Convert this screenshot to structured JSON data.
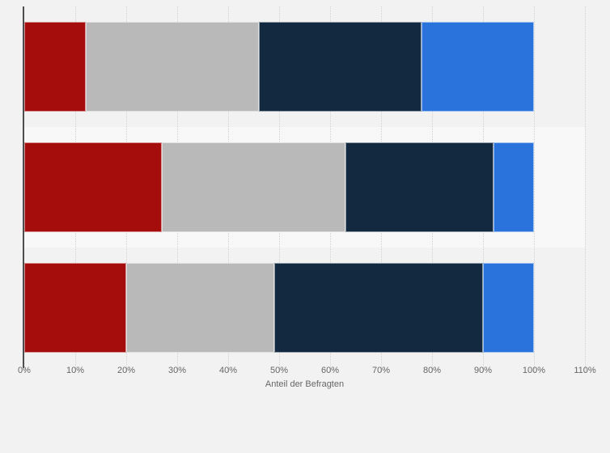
{
  "page": {
    "background": "#f2f2f2",
    "band_alt_color": "#f8f8f8",
    "gridline_color": "#d2d2d2",
    "axis_line_color": "#4e4e4e",
    "tick_text_color": "#666666"
  },
  "axis": {
    "title": "Anteil der Befragten"
  },
  "chart_data": {
    "type": "bar",
    "orientation": "horizontal",
    "stacked": true,
    "title": "",
    "xlabel": "Anteil der Befragten",
    "ylabel": "",
    "xlim": [
      0,
      110
    ],
    "x_ticks": [
      "0%",
      "10%",
      "20%",
      "30%",
      "40%",
      "50%",
      "60%",
      "70%",
      "80%",
      "90%",
      "100%",
      "110%"
    ],
    "grid": "dotted-vertical",
    "legend": "none",
    "categories": [
      "",
      "",
      ""
    ],
    "series": [
      {
        "name": "dark-red",
        "color": "#a50d0d",
        "values": [
          12,
          27,
          20
        ]
      },
      {
        "name": "gray",
        "color": "#b9b9b9",
        "values": [
          34,
          36,
          29
        ]
      },
      {
        "name": "dark-navy",
        "color": "#13293f",
        "values": [
          32,
          29,
          41
        ]
      },
      {
        "name": "blue",
        "color": "#2a73dc",
        "values": [
          22,
          8,
          10
        ]
      }
    ]
  }
}
